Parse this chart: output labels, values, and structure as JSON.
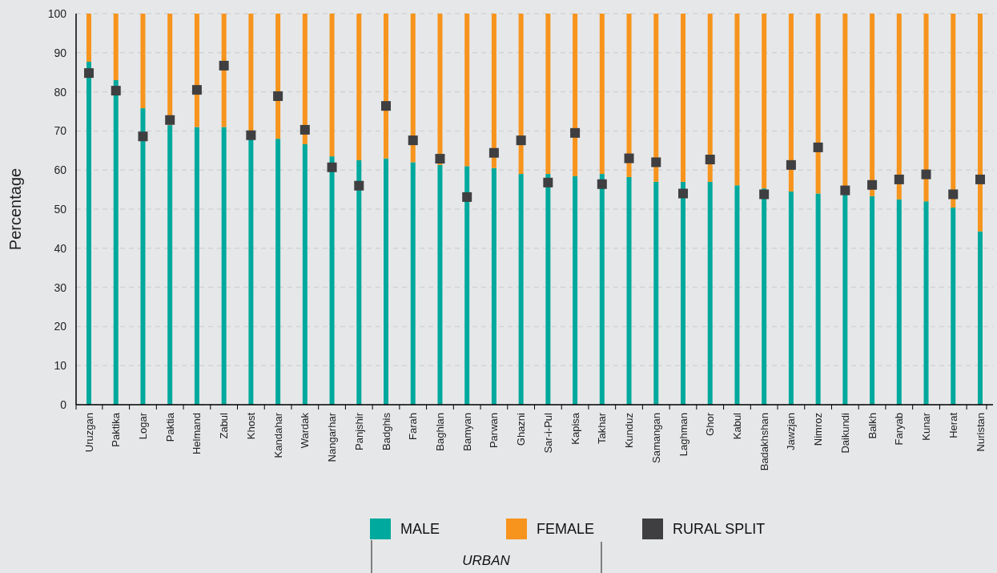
{
  "chart_data": {
    "type": "bar",
    "stacked": true,
    "ylabel": "Percentage",
    "categories": [
      "Uruzgan",
      "Paktika",
      "Logar",
      "Paktia",
      "Helmand",
      "Zabul",
      "Khost",
      "Kandahar",
      "Wardak",
      "Nangarhar",
      "Panjshir",
      "Badghis",
      "Farah",
      "Baghlan",
      "Bamyan",
      "Parwan",
      "Ghazni",
      "Sar-i-Pul",
      "Kapisa",
      "Takhar",
      "Kunduz",
      "Samangan",
      "Laghman",
      "Ghor",
      "Kabul",
      "Badakhshan",
      "Jawzjan",
      "Nimroz",
      "Daikundi",
      "Balkh",
      "Faryab",
      "Kunar",
      "Herat",
      "Nuristan"
    ],
    "series": [
      {
        "name": "MALE",
        "color": "#00a99d",
        "values": [
          87.7,
          83,
          75.8,
          71.5,
          71,
          71,
          68,
          68,
          66.6,
          63.5,
          62.5,
          63,
          62,
          61.3,
          61,
          60.5,
          59,
          59,
          58.4,
          59,
          58.2,
          57,
          57,
          57,
          56.1,
          55.3,
          54.5,
          54,
          54,
          53.3,
          52.5,
          52,
          50.4,
          44.3
        ]
      },
      {
        "name": "FEMALE",
        "color": "#f7941d",
        "values": [
          12.3,
          17,
          24.2,
          28.5,
          29,
          29,
          32,
          32,
          33.4,
          36.5,
          37.5,
          37,
          38,
          38.7,
          39,
          39.5,
          41,
          41,
          41.6,
          41,
          41.8,
          43,
          43,
          43,
          43.9,
          44.7,
          45.5,
          46,
          46,
          46.7,
          47.5,
          48,
          49.6,
          55.7
        ]
      },
      {
        "name": "RURAL SPLIT",
        "type": "scatter",
        "color": "#3f3f41",
        "marker": "square",
        "x": [
          "Uruzgan",
          "Paktika",
          "Logar",
          "Paktia",
          "Helmand",
          "Zabul",
          "Khost",
          "Kandahar",
          "Wardak",
          "Nangarhar",
          "Panjshir",
          "Badghis",
          "Farah",
          "Baghlan",
          "Bamyan",
          "Parwan",
          "Ghazni",
          "Sar-i-Pul",
          "Kapisa",
          "Takhar",
          "Kunduz",
          "Samangan",
          "Laghman",
          "Ghor",
          "Kabul",
          "Badakhshan",
          "Jawzjan",
          "Nimroz",
          "Daikundi",
          "Balkh",
          "Faryab",
          "Kunar",
          "Herat",
          "Nuristan"
        ],
        "values": [
          84.8,
          80.3,
          68.6,
          72.8,
          80.5,
          86.7,
          68.9,
          78.9,
          70.3,
          60.7,
          56,
          76.4,
          67.6,
          62.9,
          53.1,
          64.4,
          67.6,
          56.8,
          69.5,
          56.4,
          63,
          62,
          54,
          62.7,
          null,
          53.8,
          61.3,
          65.8,
          54.8,
          56.2,
          57.6,
          58.9,
          53.8,
          57.6
        ]
      }
    ],
    "ylim": [
      0,
      100
    ],
    "yticks": [
      0,
      10,
      20,
      30,
      40,
      50,
      60,
      70,
      80,
      90,
      100
    ],
    "grid": "y",
    "legend": "bottom",
    "annotations": [
      "URBAN"
    ]
  }
}
